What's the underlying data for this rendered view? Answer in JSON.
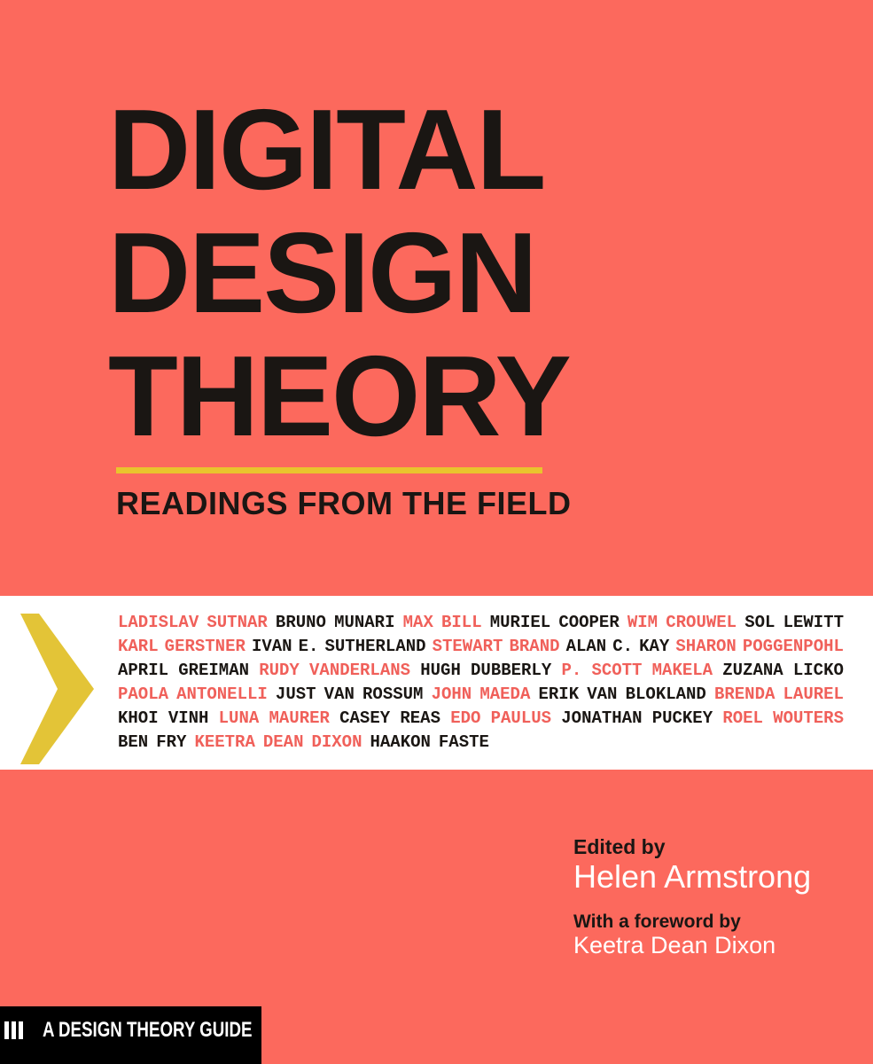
{
  "colors": {
    "background": "#FC695D",
    "coral_text": "#F0605A",
    "ink": "#1A1613",
    "yellow_rule": "#E9C42D",
    "chevron": "#E3C437",
    "band": "#FFFFFF",
    "white_text": "#FFFFFF",
    "bar_bg": "#000000"
  },
  "title": {
    "lines": [
      "DIGITAL",
      "DESIGN",
      "THEORY"
    ]
  },
  "subtitle": "READINGS FROM THE FIELD",
  "icons": {
    "chevron": "right-chevron-icon",
    "series_logo": "three-vertical-bars-icon"
  },
  "contributors": {
    "lines": [
      {
        "justify": true,
        "tokens": [
          {
            "t": "LADISLAV",
            "c": "coral"
          },
          {
            "t": "SUTNAR",
            "c": "coral"
          },
          {
            "t": "BRUNO",
            "c": "black"
          },
          {
            "t": "MUNARI",
            "c": "black"
          },
          {
            "t": "MAX",
            "c": "coral"
          },
          {
            "t": "BILL",
            "c": "coral"
          },
          {
            "t": "MURIEL",
            "c": "black"
          },
          {
            "t": "COOPER",
            "c": "black"
          },
          {
            "t": "WIM",
            "c": "coral"
          },
          {
            "t": "CROUWEL",
            "c": "coral"
          },
          {
            "t": "SOL",
            "c": "black"
          },
          {
            "t": "LEWITT",
            "c": "black"
          }
        ]
      },
      {
        "justify": true,
        "tokens": [
          {
            "t": "KARL",
            "c": "coral"
          },
          {
            "t": "GERSTNER",
            "c": "coral"
          },
          {
            "t": "IVAN",
            "c": "black"
          },
          {
            "t": "E.",
            "c": "black"
          },
          {
            "t": "SUTHERLAND",
            "c": "black"
          },
          {
            "t": "STEWART",
            "c": "coral"
          },
          {
            "t": "BRAND",
            "c": "coral"
          },
          {
            "t": "ALAN",
            "c": "black"
          },
          {
            "t": "C.",
            "c": "black"
          },
          {
            "t": "KAY",
            "c": "black"
          },
          {
            "t": "SHARON",
            "c": "coral"
          },
          {
            "t": "POGGENPOHL",
            "c": "coral"
          }
        ]
      },
      {
        "justify": true,
        "tokens": [
          {
            "t": "APRIL",
            "c": "black"
          },
          {
            "t": "GREIMAN",
            "c": "black"
          },
          {
            "t": "RUDY",
            "c": "coral"
          },
          {
            "t": "VANDERLANS",
            "c": "coral"
          },
          {
            "t": "HUGH",
            "c": "black"
          },
          {
            "t": "DUBBERLY",
            "c": "black"
          },
          {
            "t": "P.",
            "c": "coral"
          },
          {
            "t": "SCOTT",
            "c": "coral"
          },
          {
            "t": "MAKELA",
            "c": "coral"
          },
          {
            "t": "ZUZANA",
            "c": "black"
          },
          {
            "t": "LICKO",
            "c": "black"
          }
        ]
      },
      {
        "justify": true,
        "tokens": [
          {
            "t": "PAOLA",
            "c": "coral"
          },
          {
            "t": "ANTONELLI",
            "c": "coral"
          },
          {
            "t": "JUST",
            "c": "black"
          },
          {
            "t": "VAN",
            "c": "black"
          },
          {
            "t": "ROSSUM",
            "c": "black"
          },
          {
            "t": "JOHN",
            "c": "coral"
          },
          {
            "t": "MAEDA",
            "c": "coral"
          },
          {
            "t": "ERIK",
            "c": "black"
          },
          {
            "t": "VAN",
            "c": "black"
          },
          {
            "t": "BLOKLAND",
            "c": "black"
          },
          {
            "t": "BRENDA",
            "c": "coral"
          },
          {
            "t": "LAUREL",
            "c": "coral"
          }
        ]
      },
      {
        "justify": true,
        "tokens": [
          {
            "t": "KHOI",
            "c": "black"
          },
          {
            "t": "VINH",
            "c": "black"
          },
          {
            "t": "LUNA",
            "c": "coral"
          },
          {
            "t": "MAURER",
            "c": "coral"
          },
          {
            "t": "CASEY",
            "c": "black"
          },
          {
            "t": "REAS",
            "c": "black"
          },
          {
            "t": "EDO",
            "c": "coral"
          },
          {
            "t": "PAULUS",
            "c": "coral"
          },
          {
            "t": "JONATHAN",
            "c": "black"
          },
          {
            "t": "PUCKEY",
            "c": "black"
          },
          {
            "t": "ROEL",
            "c": "coral"
          },
          {
            "t": "WOUTERS",
            "c": "coral"
          }
        ]
      },
      {
        "justify": false,
        "tokens": [
          {
            "t": "BEN",
            "c": "black"
          },
          {
            "t": "FRY",
            "c": "black"
          },
          {
            "t": "KEETRA",
            "c": "coral"
          },
          {
            "t": "DEAN",
            "c": "coral"
          },
          {
            "t": "DIXON",
            "c": "coral"
          },
          {
            "t": "HAAKON",
            "c": "black"
          },
          {
            "t": "FASTE",
            "c": "black"
          }
        ]
      }
    ]
  },
  "credits": {
    "edited_by_label": "Edited by",
    "editor": "Helen Armstrong",
    "foreword_label": "With a foreword by",
    "foreword_author": "Keetra Dean Dixon"
  },
  "series": {
    "label": "A DESIGN THEORY GUIDE"
  }
}
